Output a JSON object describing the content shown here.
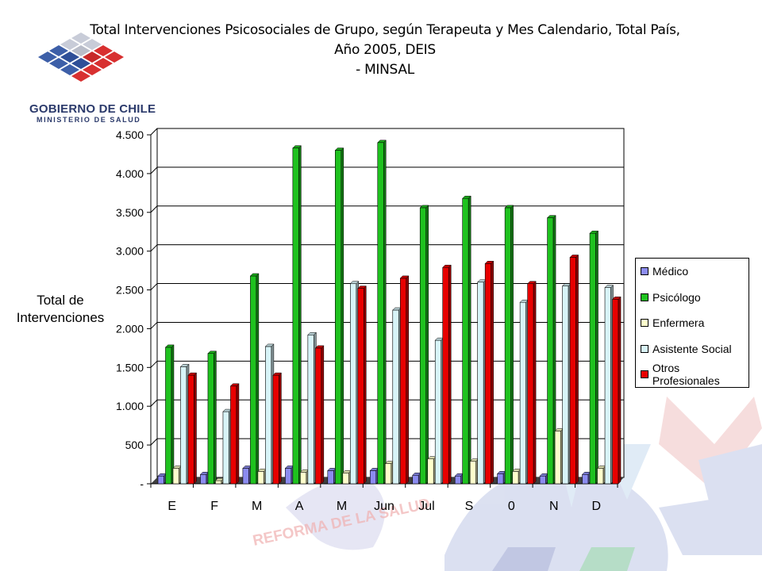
{
  "slide": {
    "title_line1": "Total Intervenciones Psicosociales de Grupo, según Terapeuta y Mes Calendario, Total País, Año 2005, DEIS",
    "title_line2": "- MINSAL",
    "logo_line1": "GOBIERNO DE CHILE",
    "logo_line2": "MINISTERIO DE SALUD",
    "watermark_text": "REFORMA DE LA SALUD"
  },
  "chart_data": {
    "type": "bar",
    "title": "Total Intervenciones Psicosociales de Grupo, según Terapeuta y Mes Calendario, Total País, Año 2005, DEIS - MINSAL",
    "ylabel_line1": "Total de",
    "ylabel_line2": "Intervenciones",
    "xlabel": "",
    "ylim": [
      0,
      4500
    ],
    "yticks": [
      0,
      500,
      1000,
      1500,
      2000,
      2500,
      3000,
      3500,
      4000,
      4500
    ],
    "ytick_labels": [
      "-",
      "500",
      "1.000",
      "1.500",
      "2.000",
      "2.500",
      "3.000",
      "3.500",
      "4.000",
      "4.500"
    ],
    "grid": true,
    "legend_position": "right",
    "categories": [
      "E",
      "F",
      "M",
      "A",
      "M",
      "Jun",
      "Jul",
      "S",
      "0",
      "N",
      "D"
    ],
    "series": [
      {
        "name": "Médico",
        "color": "#8c8cf0",
        "values": [
          100,
          120,
          200,
          200,
          170,
          170,
          110,
          100,
          130,
          100,
          120
        ]
      },
      {
        "name": "Psicólogo",
        "color": "#1fc21f",
        "values": [
          1760,
          1680,
          2680,
          4330,
          4300,
          4400,
          3560,
          3680,
          3560,
          3430,
          3230
        ]
      },
      {
        "name": "Enfermera",
        "color": "#ffffcc",
        "values": [
          200,
          40,
          160,
          150,
          140,
          260,
          320,
          290,
          160,
          680,
          200
        ]
      },
      {
        "name": "Asistente Social",
        "color": "#d8f4f8",
        "values": [
          1510,
          930,
          1770,
          1920,
          2580,
          2240,
          1850,
          2600,
          2340,
          2550,
          2530
        ]
      },
      {
        "name": "Otros Profesionales",
        "color": "#e80000",
        "values": [
          1400,
          1260,
          1400,
          1750,
          2520,
          2650,
          2790,
          2840,
          2580,
          2920,
          2380
        ]
      }
    ]
  }
}
